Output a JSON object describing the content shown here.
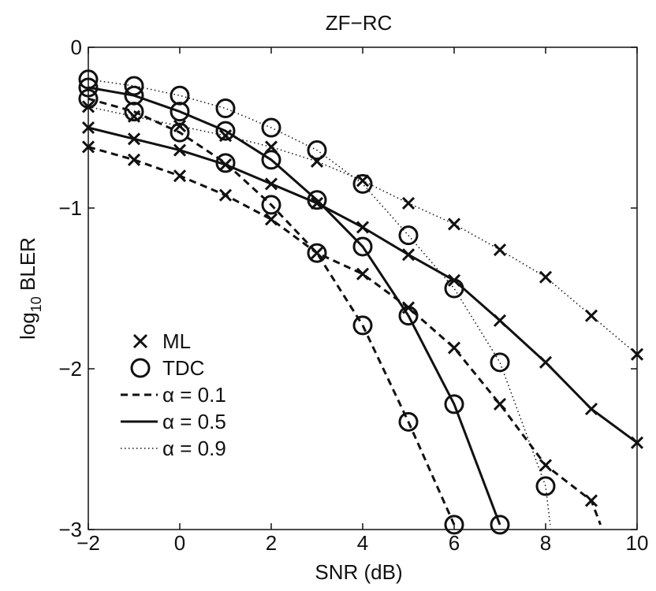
{
  "chart_data": {
    "type": "line",
    "title": "ZF−RC",
    "xlabel": "SNR (dB)",
    "ylabel_main": "log",
    "ylabel_sub": "10",
    "ylabel_suffix": " BLER",
    "xlim": [
      -2,
      10
    ],
    "ylim": [
      -3,
      0
    ],
    "x_ticks": [
      -2,
      0,
      2,
      4,
      6,
      8,
      10
    ],
    "x_tick_labels": [
      "−2",
      "0",
      "2",
      "4",
      "6",
      "8",
      "10"
    ],
    "y_ticks": [
      0,
      -1,
      -2,
      -3
    ],
    "y_tick_labels": [
      "0",
      "−1",
      "−2",
      "−3"
    ],
    "grid": false,
    "legend_position": "bottom-left",
    "legend": {
      "markers": [
        {
          "symbol": "x",
          "label": "ML"
        },
        {
          "symbol": "o",
          "label": "TDC"
        }
      ],
      "lines": [
        {
          "style": "dashed",
          "label": "α = 0.1"
        },
        {
          "style": "solid",
          "label": "α = 0.5"
        },
        {
          "style": "dotted",
          "label": "α = 0.9"
        }
      ]
    },
    "series": [
      {
        "method": "ML",
        "alpha": 0.1,
        "line": "dashed",
        "marker": "x",
        "x": [
          -2,
          -1,
          0,
          1,
          2,
          3,
          4,
          5,
          6,
          7,
          8,
          9,
          9.2
        ],
        "y": [
          -0.62,
          -0.7,
          -0.8,
          -0.92,
          -1.07,
          -1.28,
          -1.41,
          -1.62,
          -1.87,
          -2.22,
          -2.6,
          -2.82,
          -2.97
        ],
        "marker_count": 12
      },
      {
        "method": "ML",
        "alpha": 0.5,
        "line": "solid",
        "marker": "x",
        "x": [
          -2,
          -1,
          0,
          1,
          2,
          3,
          4,
          5,
          6,
          7,
          8,
          9,
          10
        ],
        "y": [
          -0.5,
          -0.57,
          -0.64,
          -0.73,
          -0.85,
          -0.97,
          -1.12,
          -1.29,
          -1.45,
          -1.7,
          -1.96,
          -2.25,
          -2.46
        ],
        "marker_count": 13
      },
      {
        "method": "ML",
        "alpha": 0.9,
        "line": "dotted",
        "marker": "x",
        "x": [
          -2,
          -1,
          0,
          1,
          2,
          3,
          4,
          5,
          6,
          7,
          8,
          9,
          10
        ],
        "y": [
          -0.37,
          -0.43,
          -0.49,
          -0.55,
          -0.62,
          -0.71,
          -0.83,
          -0.97,
          -1.1,
          -1.26,
          -1.43,
          -1.67,
          -1.91
        ],
        "marker_count": 13
      },
      {
        "method": "TDC",
        "alpha": 0.1,
        "line": "dashed",
        "marker": "o",
        "x": [
          -2,
          -1,
          0,
          1,
          2,
          3,
          4,
          5,
          6
        ],
        "y": [
          -0.32,
          -0.4,
          -0.53,
          -0.72,
          -0.98,
          -1.28,
          -1.73,
          -2.33,
          -2.97
        ],
        "marker_count": 9
      },
      {
        "method": "TDC",
        "alpha": 0.5,
        "line": "solid",
        "marker": "o",
        "x": [
          -2,
          -1,
          0,
          1,
          2,
          3,
          4,
          5,
          6,
          7
        ],
        "y": [
          -0.25,
          -0.3,
          -0.4,
          -0.52,
          -0.7,
          -0.95,
          -1.24,
          -1.67,
          -2.22,
          -2.97
        ],
        "marker_count": 10
      },
      {
        "method": "TDC",
        "alpha": 0.9,
        "line": "dotted",
        "marker": "o",
        "x": [
          -2,
          -1,
          0,
          1,
          2,
          3,
          4,
          5,
          6,
          7,
          8,
          8.1
        ],
        "y": [
          -0.2,
          -0.24,
          -0.3,
          -0.38,
          -0.5,
          -0.64,
          -0.85,
          -1.17,
          -1.5,
          -1.96,
          -2.73,
          -2.97
        ],
        "marker_count": 11
      }
    ]
  }
}
